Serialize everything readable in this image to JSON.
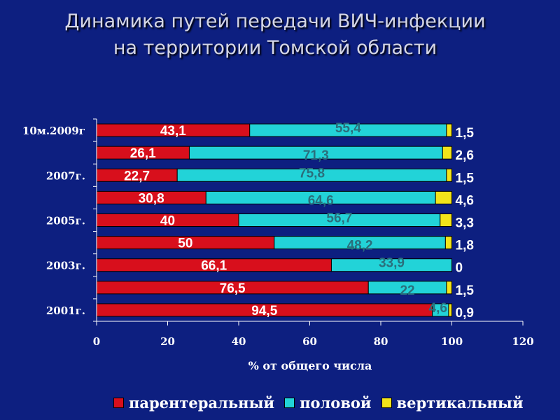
{
  "page": {
    "title_line1": "Динамика путей передачи ВИЧ-инфекции",
    "title_line2": "на территории Томской области"
  },
  "colors": {
    "background": "#0d1f80",
    "parenteral": "#d80f1c",
    "sexual": "#22d3d8",
    "vertical": "#f2e31a"
  },
  "chart_data": {
    "type": "bar",
    "orientation": "horizontal",
    "stacked": true,
    "categories": [
      "2001г.",
      "",
      "2003г.",
      "",
      "2005г.",
      "",
      "2007г.",
      "",
      "10м.2009г"
    ],
    "series": [
      {
        "name": "парентеральный",
        "values": [
          94.5,
          76.5,
          66.1,
          50,
          40,
          30.8,
          22.7,
          26.1,
          43.1
        ],
        "labels": [
          "94,5",
          "76,5",
          "66,1",
          "50",
          "40",
          "30,8",
          "22,7",
          "26,1",
          "43,1"
        ]
      },
      {
        "name": "половой",
        "values": [
          4.6,
          22,
          33.9,
          48.2,
          56.7,
          64.6,
          75.8,
          71.3,
          55.4
        ],
        "labels": [
          "4,6",
          "22",
          "33,9",
          "48,2",
          "56,7",
          "64,6",
          "75,8",
          "71,3",
          "55,4"
        ]
      },
      {
        "name": "вертикальный",
        "values": [
          0.9,
          1.5,
          0,
          1.8,
          3.3,
          4.6,
          1.5,
          2.6,
          1.5
        ],
        "labels": [
          "0,9",
          "1,5",
          "0",
          "1,8",
          "3,3",
          "4,6",
          "1,5",
          "2,6",
          "1,5"
        ]
      }
    ],
    "xlabel": "% от общего числа",
    "xlim": [
      0,
      120
    ],
    "xticks": [
      0,
      20,
      40,
      60,
      80,
      100,
      120
    ],
    "grid": false,
    "legend_position": "bottom"
  }
}
